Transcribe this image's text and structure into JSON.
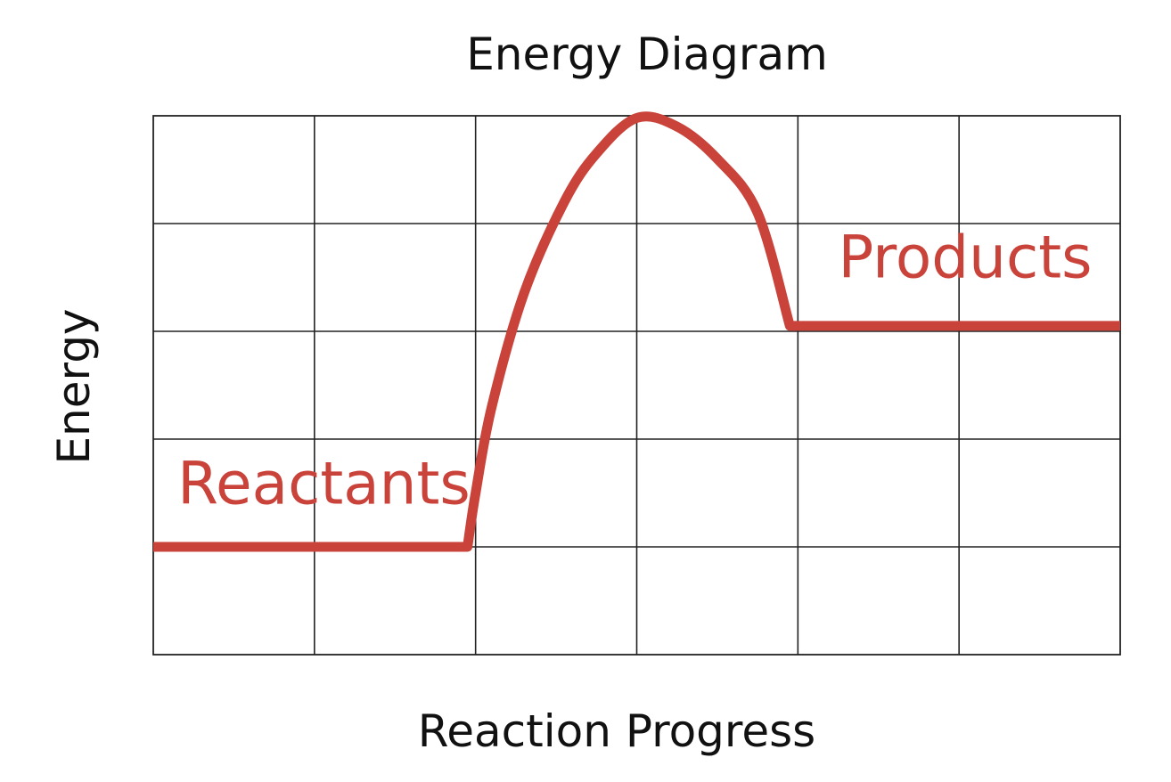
{
  "chart_data": {
    "type": "line",
    "title": "Energy Diagram",
    "xlabel": "Reaction Progress",
    "ylabel": "Energy",
    "grid": true,
    "xlim": [
      0,
      6
    ],
    "ylim": [
      0,
      5
    ],
    "x_gridlines": 6,
    "y_gridlines": 5,
    "series_color": "#c9433b",
    "series": [
      {
        "points": [
          [
            0.0,
            1.0
          ],
          [
            1.95,
            1.0
          ],
          [
            2.0,
            1.5
          ],
          [
            2.1,
            2.3
          ],
          [
            2.3,
            3.35
          ],
          [
            2.55,
            4.2
          ],
          [
            2.75,
            4.65
          ],
          [
            3.0,
            4.98
          ],
          [
            3.25,
            4.9
          ],
          [
            3.5,
            4.6
          ],
          [
            3.75,
            4.1
          ],
          [
            3.95,
            3.05
          ],
          [
            4.3,
            3.05
          ],
          [
            6.0,
            3.05
          ]
        ]
      }
    ],
    "annotations": [
      {
        "text": "Reactants",
        "x": 0.15,
        "y": 1.4
      },
      {
        "text": "Products",
        "x": 4.25,
        "y": 3.5
      }
    ]
  }
}
